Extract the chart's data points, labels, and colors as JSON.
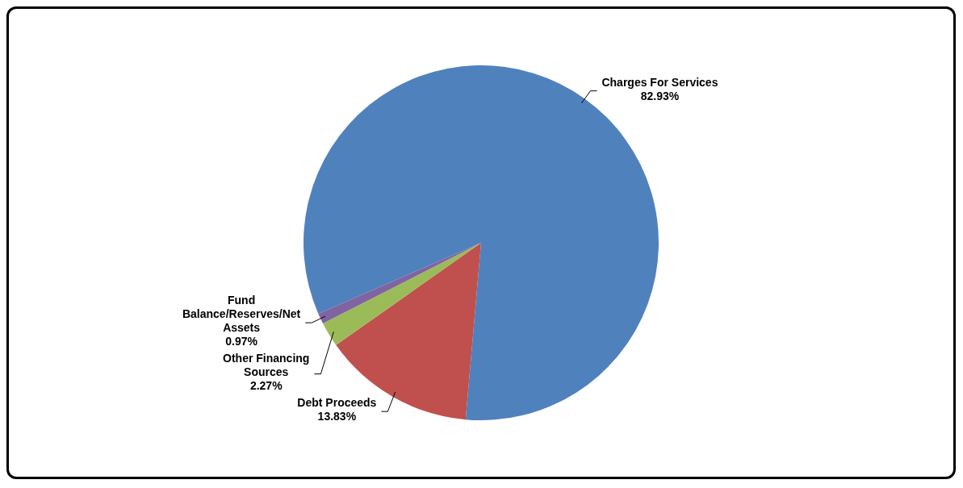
{
  "chart_data": {
    "type": "pie",
    "categories": [
      "Charges For Services",
      "Debt Proceeds",
      "Other Financing Sources",
      "Fund Balance/Reserves/Net Assets"
    ],
    "values": [
      82.93,
      13.83,
      2.27,
      0.97
    ],
    "colors": [
      "#4f81bd",
      "#c0504d",
      "#9bbb59",
      "#8064a2"
    ],
    "value_labels": [
      "82.93%",
      "13.83%",
      "2.27%",
      "0.97%"
    ],
    "legend": false
  }
}
